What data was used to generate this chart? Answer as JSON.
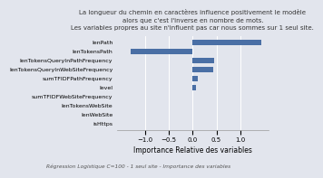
{
  "title_lines": "La longueur du chemin en caractères influence positivement le modèle\nalors que c'est l'inverse en nombre de mots.\nLes variables propres au site n'influent pas car nous sommes sur 1 seul site.",
  "subtitle": "Régression Logistique C=100 - 1 seul site - Importance des variables",
  "xlabel": "Importance Relative des variables",
  "categories": [
    "lenPath",
    "lenTokensPath",
    "lenTokensQueryInPathFrequency",
    "lenTokensQueryInWebSiteFrequency",
    "sumTFIDFPathFrequency",
    "level",
    "sumTFIDFWebSiteFrequency",
    "lenTokensWebSite",
    "lenWebSite",
    "isHttps"
  ],
  "values": [
    1.45,
    -1.3,
    0.45,
    0.43,
    0.1,
    0.07,
    0.0,
    0.0,
    0.0,
    0.0
  ],
  "bar_color": "#4a6fa5",
  "bg_color": "#e2e5ed",
  "plot_bg_color": "#e2e5ed",
  "xlim": [
    -1.6,
    1.6
  ],
  "xticks": [
    -1.0,
    -0.5,
    0.0,
    0.5,
    1.0
  ],
  "title_fontsize": 5.0,
  "subtitle_fontsize": 4.2,
  "label_fontsize": 4.5,
  "xlabel_fontsize": 5.5,
  "tick_fontsize": 5.0
}
